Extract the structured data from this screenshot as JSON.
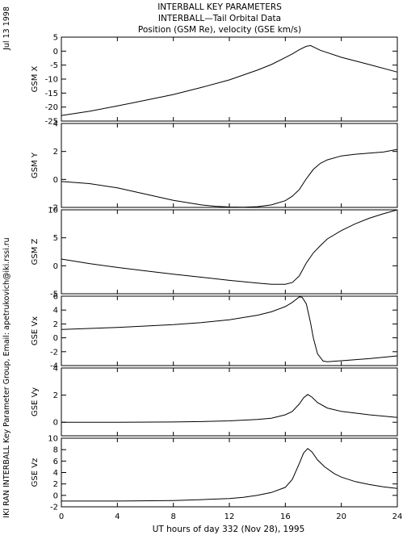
{
  "header": {
    "title": "INTERBALL KEY PARAMETERS",
    "subtitle": "INTERBALL—Tail Orbital Data",
    "subtitle2": "Position (GSM Re), velocity (GSE km/s)"
  },
  "side_date": "Jul 13 1998",
  "side_credit": "IKI RAN INTERBALL Key Parameter Group, Email: apetrukovich@iki.rssi.ru",
  "chart_data": {
    "type": "line",
    "xlabel": "UT hours of day 332 (Nov 28), 1995",
    "xlim": [
      0,
      24
    ],
    "xticks": [
      0,
      4,
      8,
      12,
      16,
      20,
      24
    ],
    "panels": [
      {
        "ylabel": "GSM X",
        "ylim": [
          -25,
          5
        ],
        "yticks": [
          5,
          0,
          -5,
          -10,
          -15,
          -20,
          -25
        ],
        "x": [
          0,
          2,
          4,
          6,
          8,
          10,
          12,
          14,
          15,
          16,
          16.5,
          17,
          17.5,
          17.8,
          18.5,
          20,
          22,
          24
        ],
        "y": [
          -23,
          -21.5,
          -19.6,
          -17.6,
          -15.5,
          -13,
          -10.3,
          -6.8,
          -4.8,
          -2.3,
          -1,
          0.5,
          1.7,
          2,
          0.3,
          -2.2,
          -4.8,
          -7.5
        ]
      },
      {
        "ylabel": "GSM Y",
        "ylim": [
          -2,
          4
        ],
        "yticks": [
          4,
          2,
          0,
          -2
        ],
        "x": [
          0,
          2,
          4,
          6,
          8,
          10,
          11,
          12,
          13,
          14,
          15,
          16,
          16.5,
          17,
          17.5,
          18,
          18.5,
          19,
          20,
          21,
          22,
          23,
          24
        ],
        "y": [
          -0.15,
          -0.3,
          -0.6,
          -1.05,
          -1.5,
          -1.82,
          -1.92,
          -1.97,
          -1.98,
          -1.95,
          -1.82,
          -1.52,
          -1.2,
          -0.72,
          0.05,
          0.72,
          1.15,
          1.4,
          1.68,
          1.8,
          1.88,
          1.96,
          2.15
        ]
      },
      {
        "ylabel": "GSM Z",
        "ylim": [
          -5,
          10
        ],
        "yticks": [
          10,
          5,
          0,
          -5
        ],
        "x": [
          0,
          2,
          4,
          6,
          8,
          10,
          12,
          14,
          15,
          16,
          16.5,
          17,
          17.5,
          18,
          18.5,
          19,
          20,
          21,
          22,
          23,
          24
        ],
        "y": [
          1.2,
          0.4,
          -0.3,
          -0.9,
          -1.5,
          -2.05,
          -2.6,
          -3.1,
          -3.3,
          -3.3,
          -3,
          -1.8,
          0.5,
          2.3,
          3.6,
          4.8,
          6.3,
          7.5,
          8.5,
          9.3,
          10
        ]
      },
      {
        "ylabel": "GSE Vx",
        "ylim": [
          -4,
          6
        ],
        "yticks": [
          6,
          4,
          2,
          0,
          -2,
          -4
        ],
        "x": [
          0,
          2,
          4,
          6,
          8,
          10,
          12,
          14,
          15,
          16,
          16.5,
          17,
          17.2,
          17.5,
          17.8,
          18,
          18.3,
          18.7,
          19,
          20,
          22,
          24
        ],
        "y": [
          1.2,
          1.35,
          1.5,
          1.7,
          1.9,
          2.2,
          2.6,
          3.25,
          3.75,
          4.5,
          5.1,
          5.9,
          5.85,
          4.9,
          2.2,
          0,
          -2.3,
          -3.35,
          -3.45,
          -3.3,
          -3,
          -2.6
        ]
      },
      {
        "ylabel": "GSE Vy",
        "ylim": [
          -1,
          4
        ],
        "yticks": [
          4,
          2,
          0
        ],
        "x": [
          0,
          4,
          8,
          10,
          12,
          14,
          15,
          16,
          16.5,
          17,
          17.3,
          17.6,
          17.9,
          18.3,
          19,
          20,
          22,
          24
        ],
        "y": [
          0,
          0,
          0.02,
          0.05,
          0.1,
          0.2,
          0.3,
          0.55,
          0.8,
          1.35,
          1.8,
          2.05,
          1.85,
          1.45,
          1.05,
          0.8,
          0.55,
          0.35
        ]
      },
      {
        "ylabel": "GSE Vz",
        "ylim": [
          -2,
          10
        ],
        "yticks": [
          10,
          8,
          6,
          4,
          2,
          0,
          -2
        ],
        "x": [
          0,
          4,
          8,
          10,
          12,
          13,
          14,
          15,
          16,
          16.5,
          17,
          17.3,
          17.6,
          17.9,
          18.3,
          18.8,
          19.5,
          20,
          21,
          22,
          23,
          24
        ],
        "y": [
          -1,
          -1,
          -0.9,
          -0.75,
          -0.55,
          -0.35,
          0,
          0.5,
          1.4,
          2.8,
          5.6,
          7.4,
          8.2,
          7.6,
          6.2,
          5,
          3.8,
          3.2,
          2.4,
          1.9,
          1.5,
          1.2
        ]
      }
    ]
  }
}
